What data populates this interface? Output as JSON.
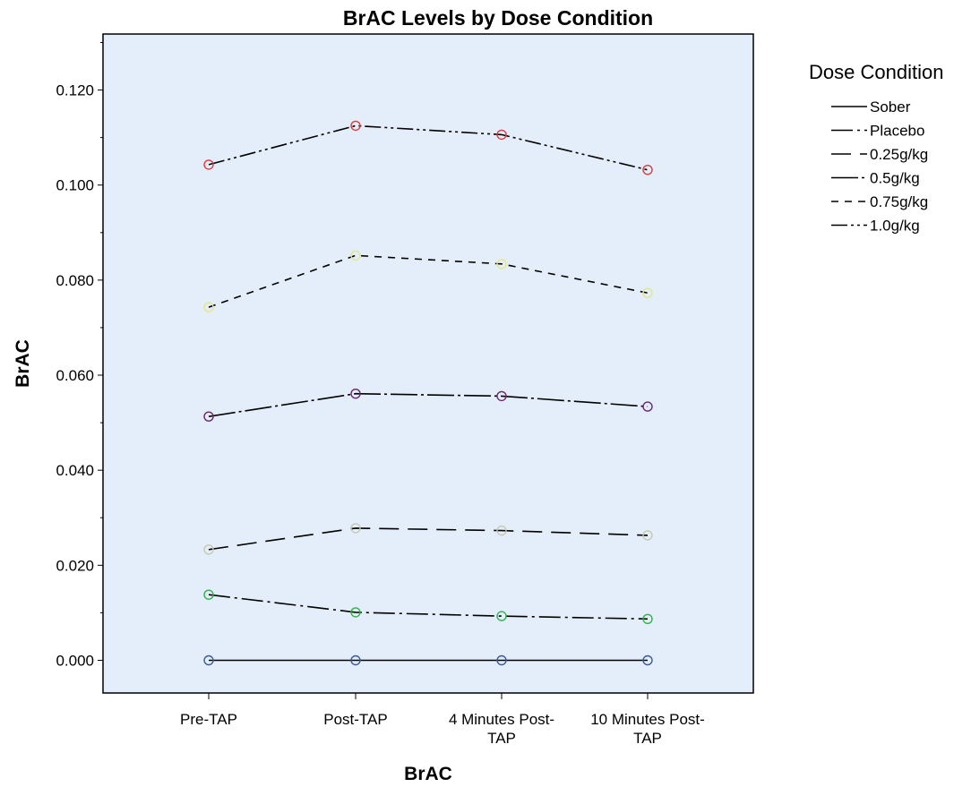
{
  "chart_data": {
    "type": "line",
    "title": "BrAC Levels by Dose Condition",
    "xlabel": "BrAC",
    "ylabel": "BrAC",
    "categories": [
      "Pre-TAP",
      "Post-TAP",
      "4 Minutes Post-TAP",
      "10 Minutes Post-TAP"
    ],
    "category_lines": [
      [
        "Pre-TAP"
      ],
      [
        "Post-TAP"
      ],
      [
        "4 Minutes Post-",
        "TAP"
      ],
      [
        "10 Minutes Post-",
        "TAP"
      ]
    ],
    "yticks": [
      "0.000",
      "0.020",
      "0.040",
      "0.060",
      "0.080",
      "0.100",
      "0.120"
    ],
    "ylim": [
      -0.007,
      0.132
    ],
    "grid": false,
    "background": "#e3eefa",
    "legend": {
      "title": "Dose Condition",
      "position": "right"
    },
    "series": [
      {
        "name": "Sober",
        "values": [
          0.0,
          0.0,
          0.0,
          0.0
        ],
        "marker": "#3d5a99",
        "dash": "none"
      },
      {
        "name": "Placebo",
        "values": [
          0.0138,
          0.0101,
          0.0093,
          0.0087
        ],
        "marker": "#2fb34a",
        "dash": "24 5 3 5"
      },
      {
        "name": "0.25g/kg",
        "values": [
          0.0233,
          0.0278,
          0.0273,
          0.0263
        ],
        "marker": "#c8c8b0",
        "dash": "22 10"
      },
      {
        "name": "0.5g/kg",
        "values": [
          0.0513,
          0.0561,
          0.0556,
          0.0534
        ],
        "marker": "#6a2670",
        "dash": "30 4 3 4"
      },
      {
        "name": "0.75g/kg",
        "values": [
          0.0743,
          0.0852,
          0.0834,
          0.0773
        ],
        "marker": "#e6e687",
        "dash": "8 7"
      },
      {
        "name": "1.0g/kg",
        "values": [
          0.1043,
          0.1125,
          0.1106,
          0.1032
        ],
        "marker": "#e23a3a",
        "dash": "18 4 3 4 3 4"
      }
    ]
  }
}
